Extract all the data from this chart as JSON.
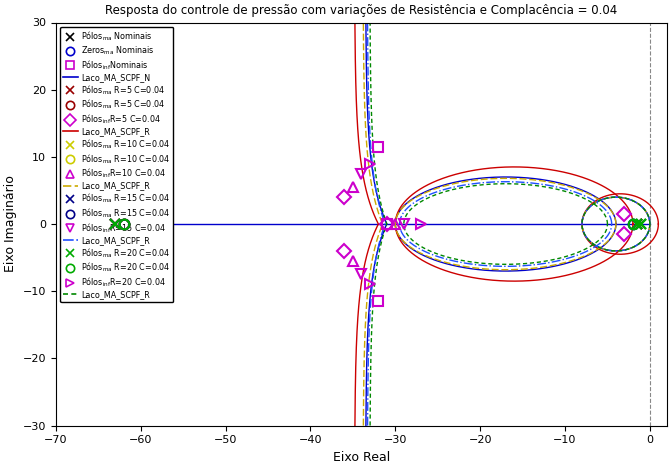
{
  "title": "Resposta do controle de pressão com variações de Resistência e Complacência = 0.04",
  "xlabel": "Eixo Real",
  "ylabel": "Eixo Imaginário",
  "xlim": [
    -70,
    2
  ],
  "ylim": [
    -30,
    30
  ],
  "xticks": [
    -70,
    -60,
    -50,
    -40,
    -30,
    -20,
    -10,
    0
  ],
  "yticks": [
    -30,
    -20,
    -10,
    0,
    10,
    20,
    30
  ],
  "bg_color": "#ffffff",
  "figsize": [
    6.71,
    4.68
  ],
  "dpi": 100
}
